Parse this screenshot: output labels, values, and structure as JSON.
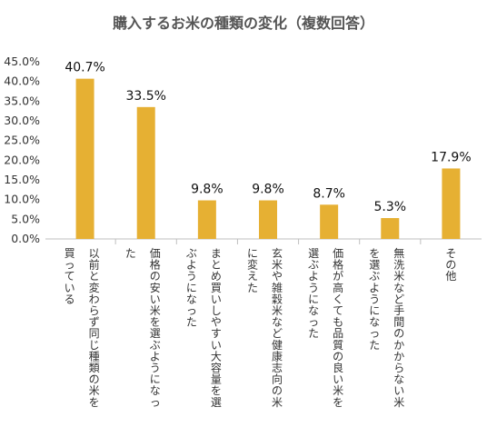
{
  "chart_data": {
    "type": "bar",
    "title": "購入するお米の種類の変化（複数回答）",
    "xlabel": "",
    "ylabel": "",
    "ylim": [
      0,
      45
    ],
    "ytick_labels": [
      "0.0%",
      "5.0%",
      "10.0%",
      "15.0%",
      "20.0%",
      "25.0%",
      "30.0%",
      "35.0%",
      "40.0%",
      "45.0%"
    ],
    "grid": false,
    "legend": "none",
    "bar_color": "#E6B033",
    "categories": [
      [
        "以前と変わらず同じ種類の米を",
        "買っている"
      ],
      [
        "価格の安い米を選ぶようになっ",
        "た"
      ],
      [
        "まとめ買いしやすい大容量を選",
        "ぶようになった"
      ],
      [
        "玄米や雑穀米など健康志向の米",
        "に変えた"
      ],
      [
        "価格が高くても品質の良い米を",
        "選ぶようになった"
      ],
      [
        "無洗米など手間のかからない米",
        "を選ぶようになった"
      ],
      [
        "その他"
      ]
    ],
    "values": [
      40.7,
      33.5,
      9.8,
      9.8,
      8.7,
      5.3,
      17.9
    ],
    "value_labels": [
      "40.7%",
      "33.5%",
      "9.8%",
      "9.8%",
      "8.7%",
      "5.3%",
      "17.9%"
    ]
  }
}
